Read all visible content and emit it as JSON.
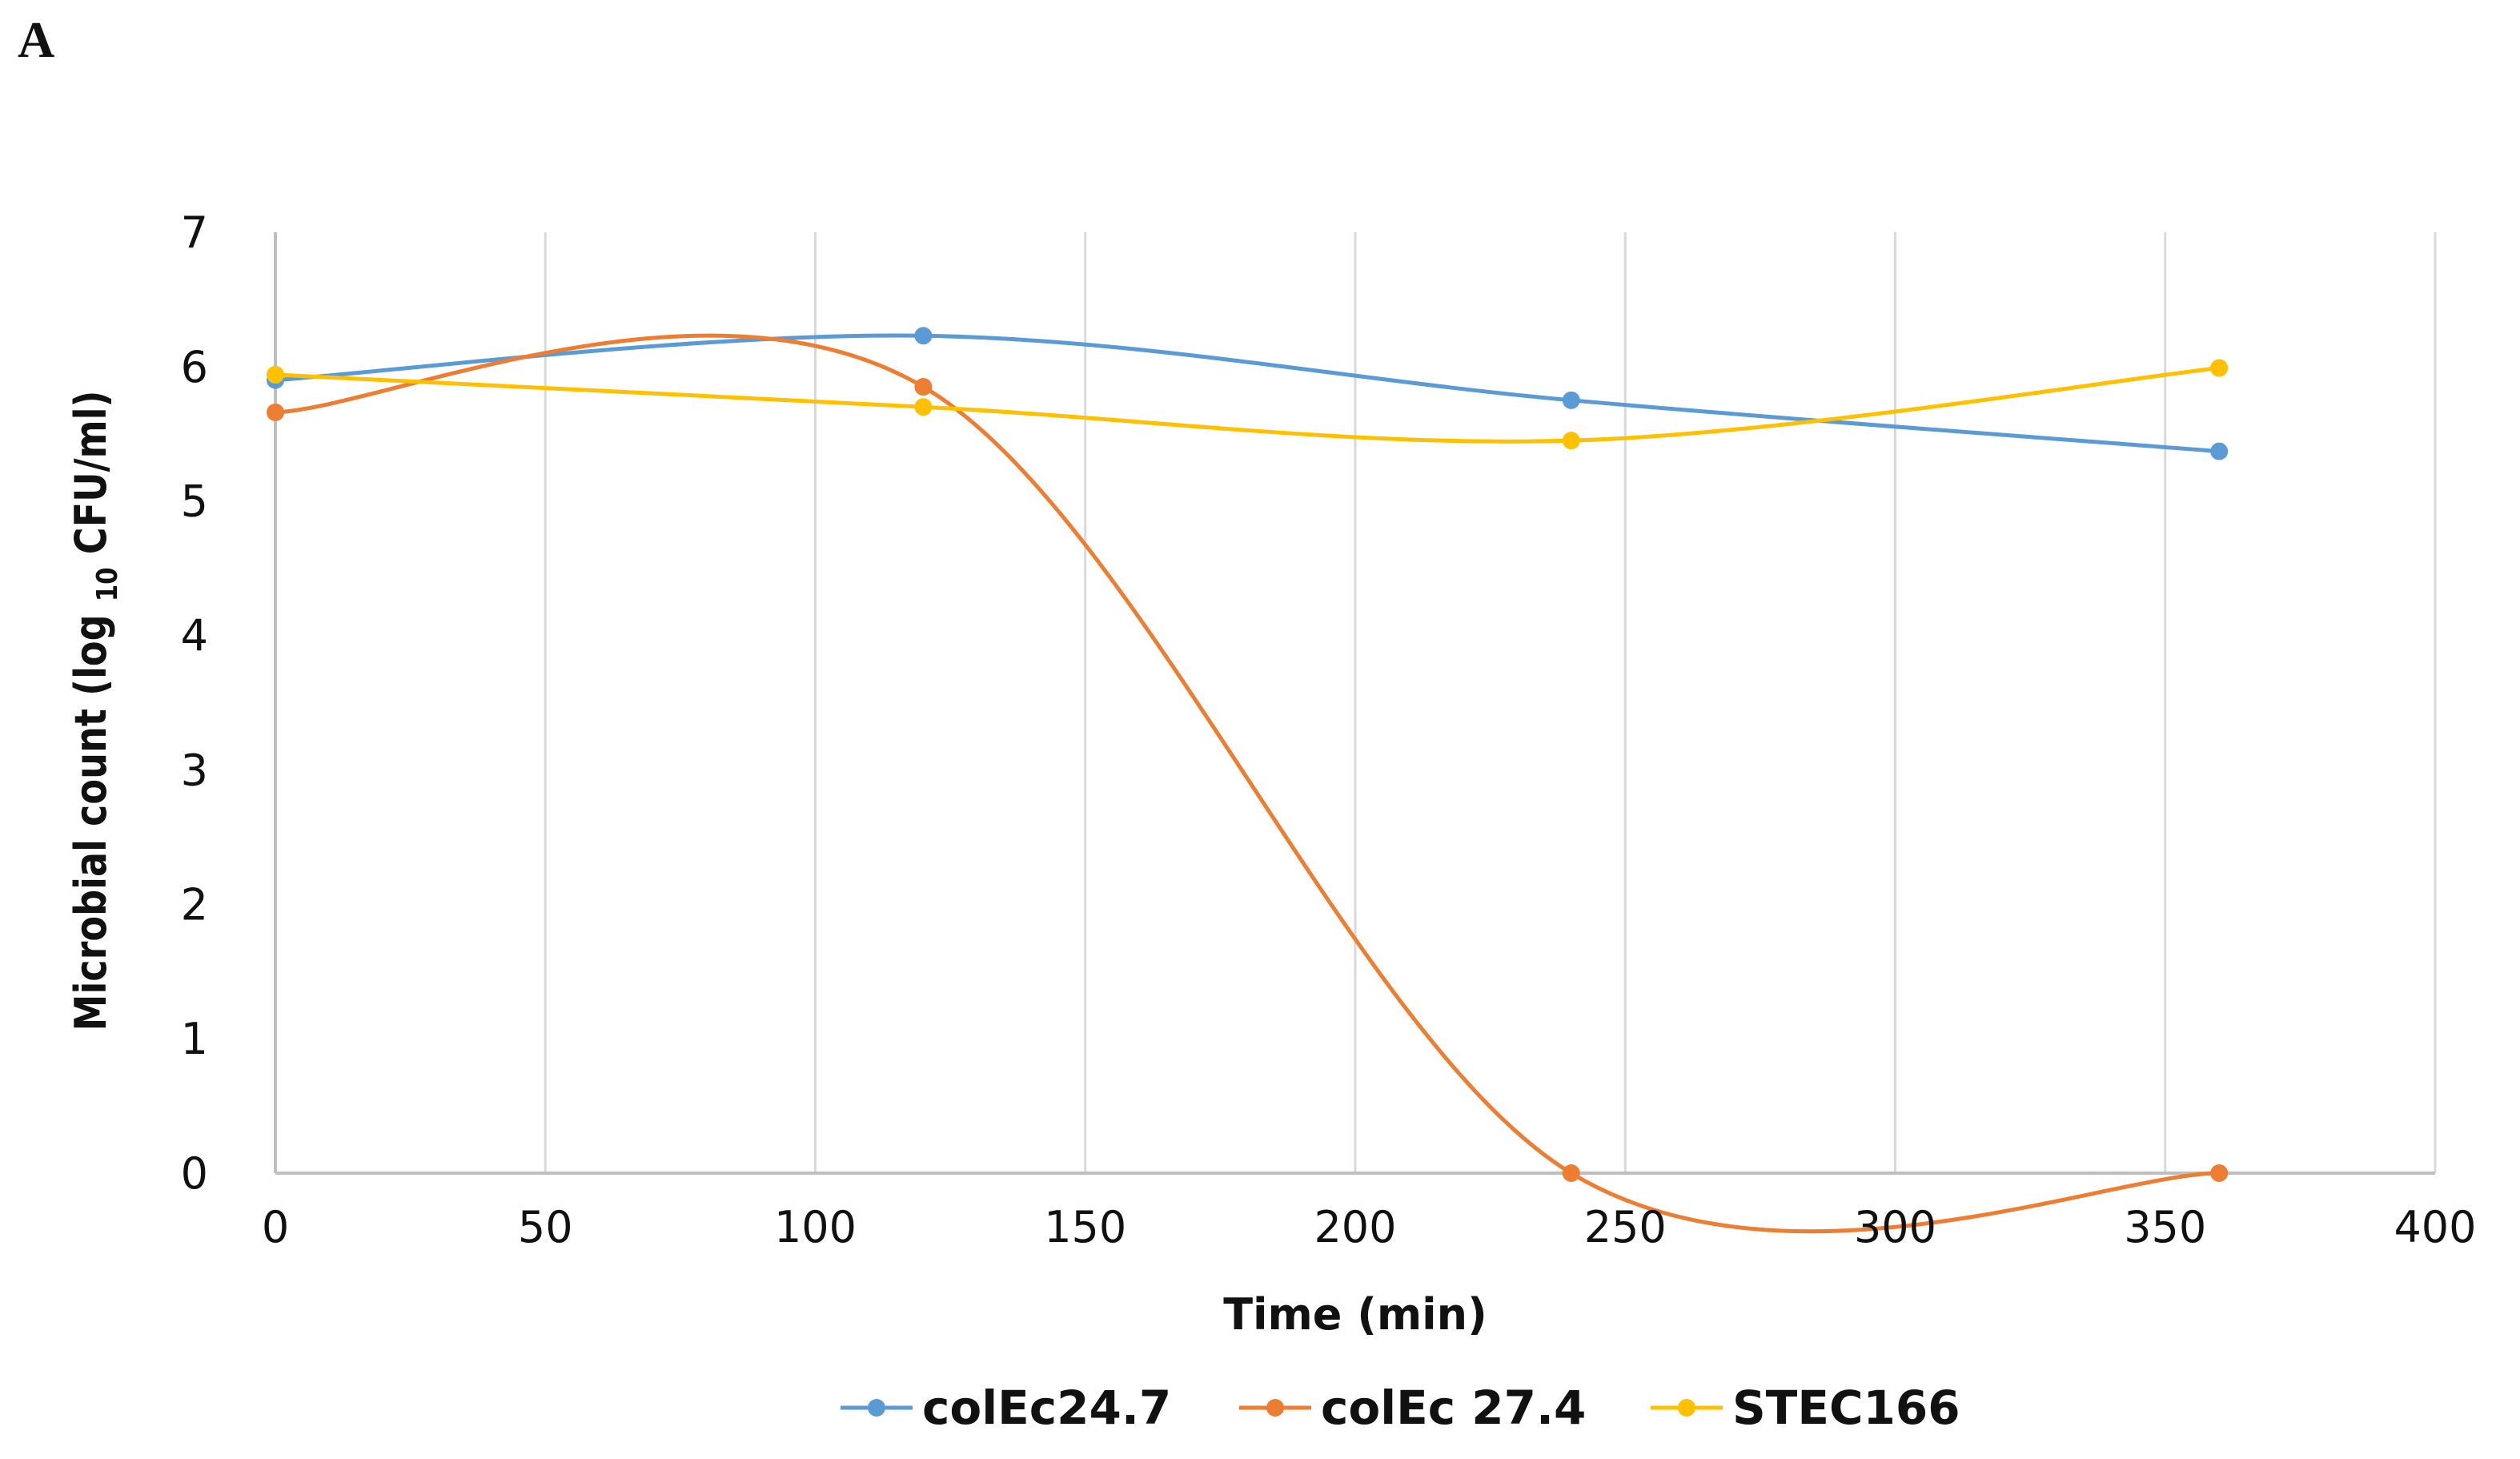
{
  "panel_label": "A",
  "chart_data": {
    "type": "line",
    "title": "",
    "xlabel": "Time (min)",
    "ylabel": {
      "main": "Microbial count (log",
      "sub": "10",
      "tail": "CFU/ml)"
    },
    "xlim": [
      0,
      400
    ],
    "ylim": [
      0,
      7
    ],
    "x_ticks": [
      0,
      50,
      100,
      150,
      200,
      250,
      300,
      350,
      400
    ],
    "y_ticks": [
      0,
      1,
      2,
      3,
      4,
      5,
      6,
      7
    ],
    "grid": "vertical",
    "smooth": true,
    "legend_position": "bottom",
    "series": [
      {
        "name": "colEc24.7",
        "color": "#5b9bd5",
        "x": [
          0,
          120,
          240,
          360
        ],
        "y": [
          5.9,
          6.23,
          5.75,
          5.37
        ]
      },
      {
        "name": "colEc 27.4",
        "color": "#ed7d31",
        "x": [
          0,
          120,
          240,
          360
        ],
        "y": [
          5.66,
          5.85,
          0,
          0
        ]
      },
      {
        "name": "STEC166",
        "color": "#ffc000",
        "x": [
          0,
          120,
          240,
          360
        ],
        "y": [
          5.94,
          5.7,
          5.45,
          5.99
        ]
      }
    ]
  }
}
